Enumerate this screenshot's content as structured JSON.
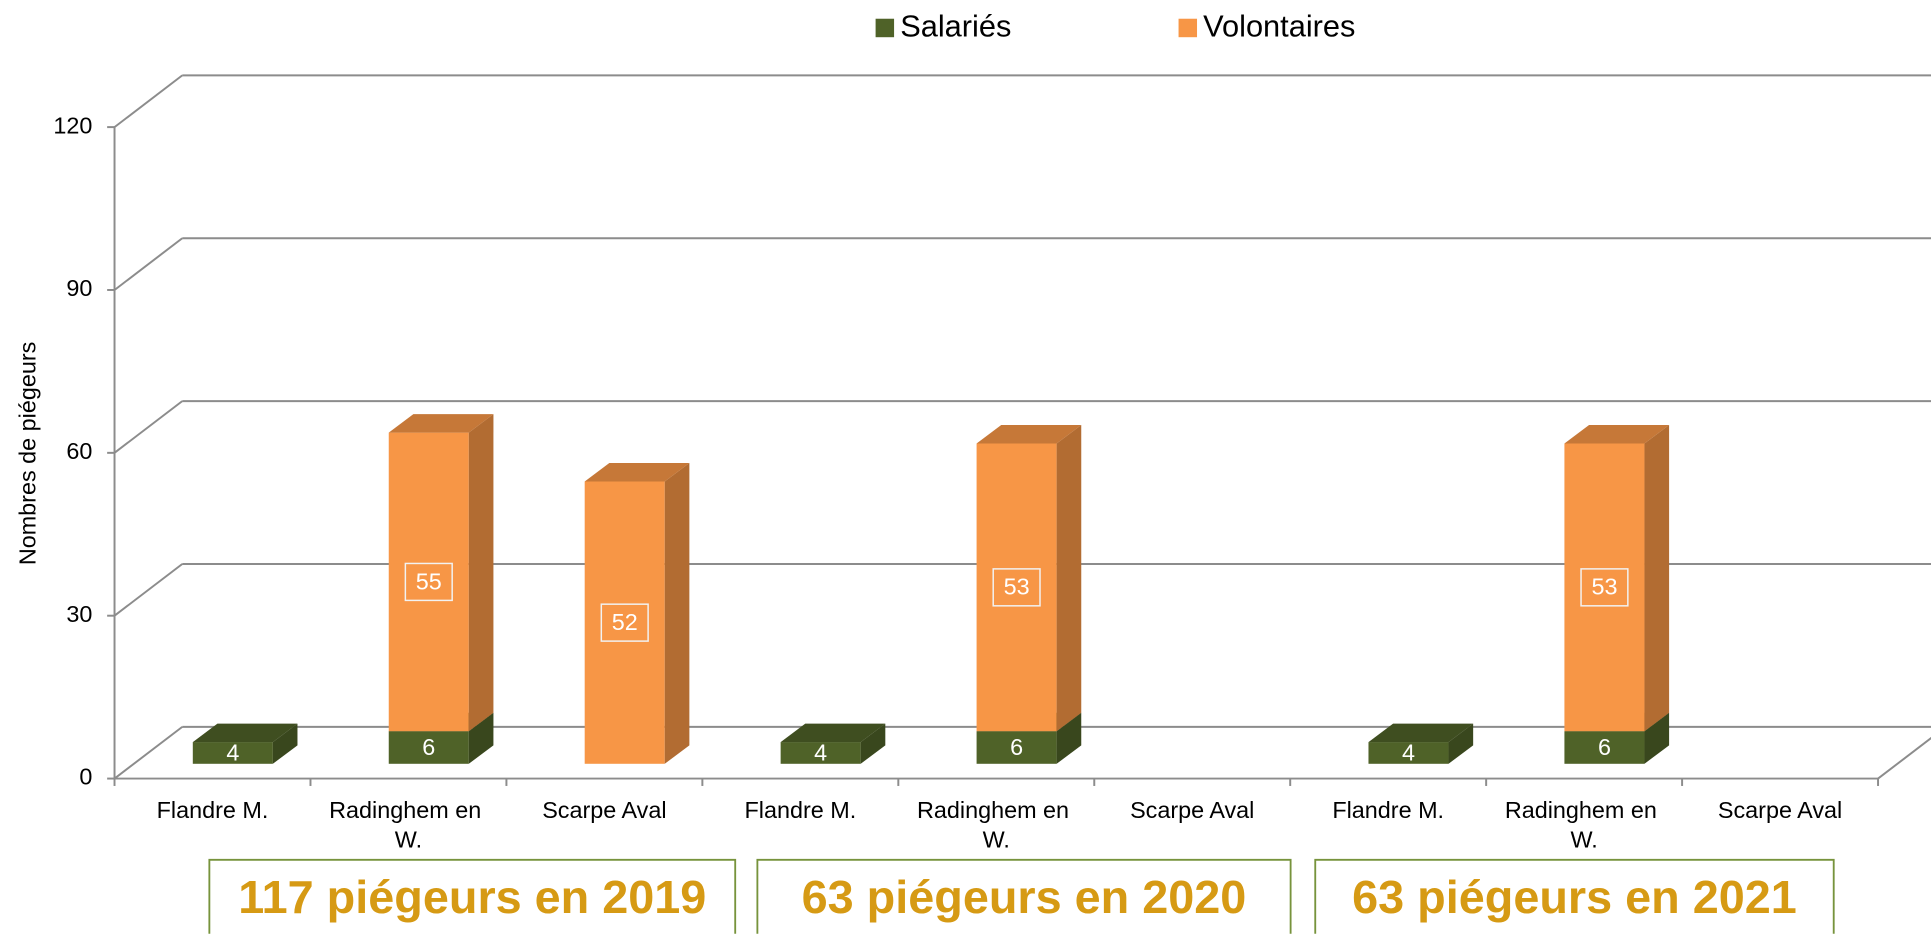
{
  "chart_data": {
    "type": "bar3d_stacked",
    "y_label": "Nombres de piégeurs",
    "categories": [
      "Flandre M.",
      "Radinghem en W.",
      "Scarpe Aval",
      "Flandre M.",
      "Radinghem en W.",
      "Scarpe Aval",
      "Flandre M.",
      "Radinghem en W.",
      "Scarpe Aval"
    ],
    "series": [
      {
        "name": "Salariés",
        "color": "#4f6228",
        "values": [
          4,
          6,
          null,
          4,
          6,
          null,
          4,
          6,
          null
        ]
      },
      {
        "name": "Volontaires",
        "color": "#f79646",
        "values": [
          null,
          55,
          52,
          null,
          53,
          null,
          null,
          53,
          null
        ]
      }
    ],
    "ylim": [
      0,
      120
    ],
    "yticks": [
      0,
      30,
      60,
      90,
      120
    ],
    "grid": true,
    "legend": "top",
    "annotations": [
      "117 piégeurs en 2019",
      "63 piégeurs en 2020",
      "63 piégeurs en 2021"
    ]
  }
}
